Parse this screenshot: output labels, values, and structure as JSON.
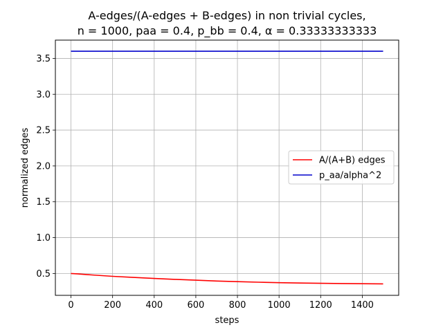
{
  "chart_data": {
    "type": "line",
    "title_line1": "A-edges/(A-edges + B-edges) in non trivial cycles,",
    "title_line2": "n = 1000, paa = 0.4, p_bb = 0.4, α = 0.33333333333",
    "xlabel": "steps",
    "ylabel": "normalized edges",
    "xlim": [
      -75,
      1575
    ],
    "ylim": [
      0.195,
      3.755
    ],
    "xticks": [
      0,
      200,
      400,
      600,
      800,
      1000,
      1200,
      1400
    ],
    "xtick_labels": [
      "0",
      "200",
      "400",
      "600",
      "800",
      "1000",
      "1200",
      "1400"
    ],
    "yticks": [
      0.5,
      1.0,
      1.5,
      2.0,
      2.5,
      3.0,
      3.5
    ],
    "ytick_labels": [
      "0.5",
      "1.0",
      "1.5",
      "2.0",
      "2.5",
      "3.0",
      "3.5"
    ],
    "grid": true,
    "legend_position": "center-right",
    "series": [
      {
        "name": "A/(A+B) edges",
        "color": "#ff0000",
        "x": [
          0,
          30,
          100,
          200,
          300,
          400,
          500,
          600,
          700,
          800,
          900,
          1000,
          1100,
          1200,
          1300,
          1400,
          1500
        ],
        "y": [
          0.5,
          0.495,
          0.48,
          0.46,
          0.445,
          0.43,
          0.418,
          0.406,
          0.395,
          0.386,
          0.378,
          0.372,
          0.367,
          0.363,
          0.36,
          0.357,
          0.355
        ]
      },
      {
        "name": "p_aa/alpha^2",
        "color": "#0000cc",
        "x": [
          0,
          1500
        ],
        "y": [
          3.6,
          3.6
        ]
      }
    ]
  }
}
